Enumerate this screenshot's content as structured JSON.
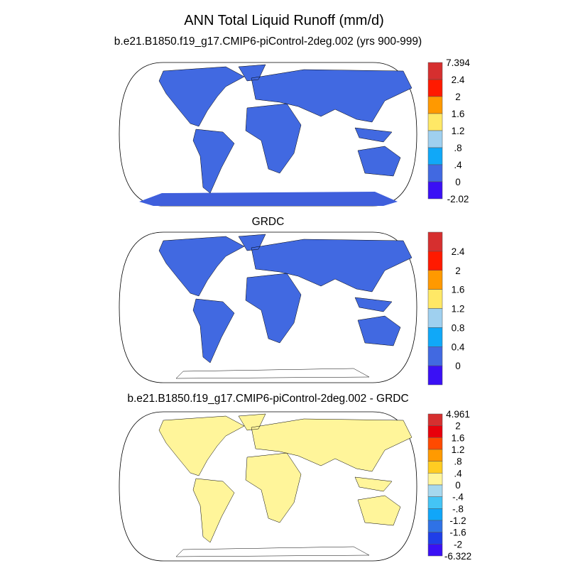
{
  "figure": {
    "title": "ANN Total Liquid Runoff (mm/d)"
  },
  "chart_data": [
    {
      "type": "map",
      "title": "b.e21.B1850.f19_g17.CMIP6-piControl-2deg.002 (yrs 900-999)",
      "variable": "Total Liquid Runoff",
      "units": "mm/d",
      "colorbar": {
        "labels": [
          "7.394",
          "2.4",
          "2",
          "1.6",
          "1.2",
          ".8",
          ".4",
          "0",
          "-2.02"
        ],
        "colors": [
          "#d62f2f",
          "#ff1a00",
          "#ff9900",
          "#ffe866",
          "#9fd0ef",
          "#10a8f8",
          "#4169e1",
          "#3a10f5"
        ]
      }
    },
    {
      "type": "map",
      "title": "GRDC",
      "variable": "Total Liquid Runoff",
      "units": "mm/d",
      "colorbar": {
        "labels": [
          "2.4",
          "2",
          "1.6",
          "1.2",
          "0.8",
          "0.4",
          "0"
        ],
        "colors": [
          "#d62f2f",
          "#ff1a00",
          "#ff9900",
          "#ffe866",
          "#9fd0ef",
          "#10a8f8",
          "#4169e1",
          "#3a10f5"
        ]
      }
    },
    {
      "type": "map",
      "title": "b.e21.B1850.f19_g17.CMIP6-piControl-2deg.002 - GRDC",
      "variable": "Total Liquid Runoff difference",
      "units": "mm/d",
      "colorbar": {
        "labels": [
          "4.961",
          "2",
          "1.6",
          "1.2",
          ".8",
          ".4",
          "0",
          "-.4",
          "-.8",
          "-1.2",
          "-1.6",
          "-2",
          "-6.322"
        ],
        "colors": [
          "#d62f2f",
          "#e8000b",
          "#ff4a00",
          "#ff9a00",
          "#ffcc22",
          "#fff59a",
          "#a7d8ee",
          "#44c4f5",
          "#10a6f9",
          "#2f72e6",
          "#1f3ee8",
          "#3a10f5"
        ]
      }
    }
  ]
}
